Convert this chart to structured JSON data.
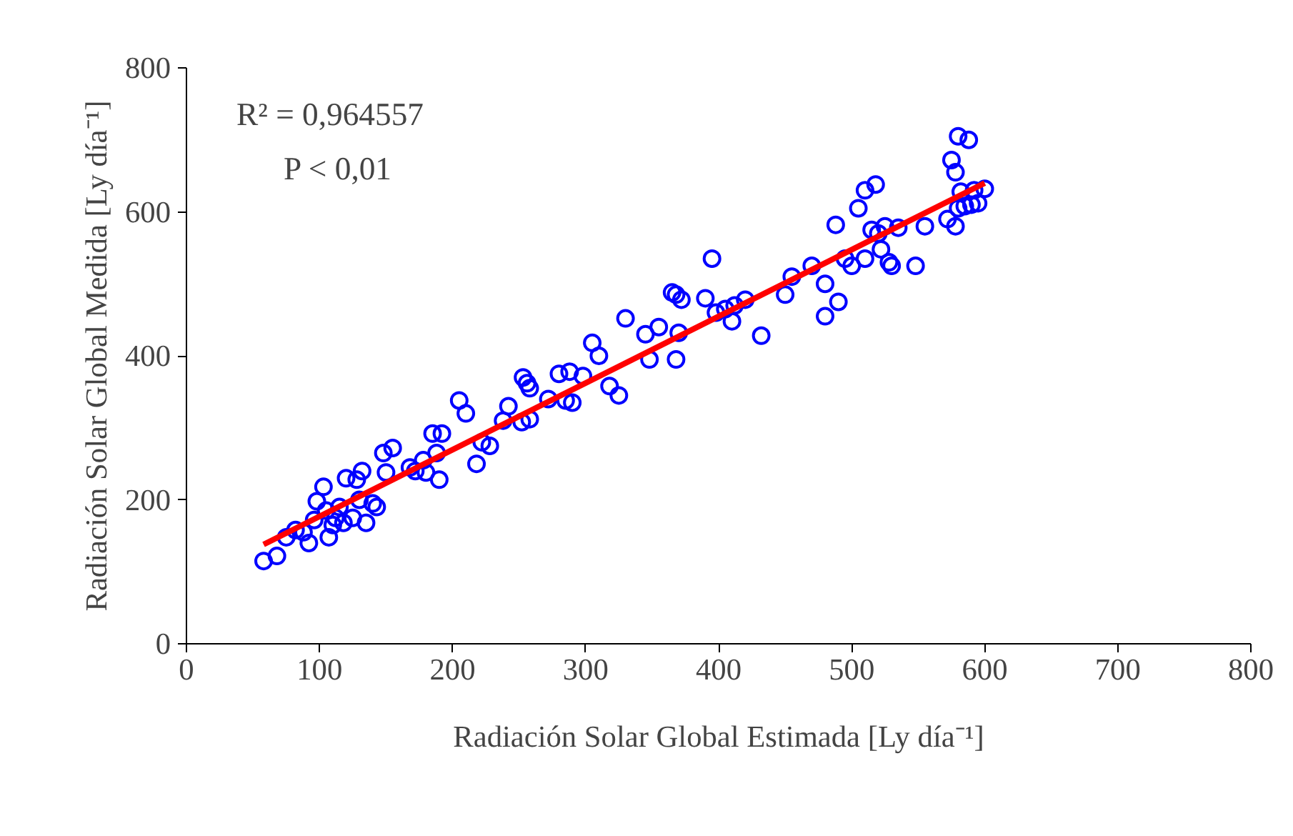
{
  "chart_data": {
    "type": "scatter",
    "xlabel": "Radiación Solar Global Estimada [Ly día⁻¹]",
    "ylabel": "Radiación Solar Global Medida [Ly día⁻¹]",
    "annotations": [
      "R² = 0,964557",
      "P < 0,01"
    ],
    "xlim": [
      0,
      800
    ],
    "xticks": [
      0,
      100,
      200,
      300,
      400,
      500,
      600,
      700,
      800
    ],
    "ylim": [
      0,
      800
    ],
    "yticks": [
      0,
      200,
      400,
      600,
      800
    ],
    "grid": false,
    "series": [
      {
        "color": "#0000ff",
        "marker": "circle",
        "x": [
          58,
          68,
          75,
          82,
          88,
          92,
          96,
          98,
          103,
          105,
          107,
          110,
          112,
          115,
          118,
          120,
          125,
          128,
          130,
          132,
          135,
          140,
          143,
          148,
          155,
          150,
          168,
          172,
          178,
          180,
          185,
          188,
          190,
          192,
          205,
          210,
          218,
          222,
          228,
          238,
          242,
          252,
          253,
          256,
          258,
          258,
          272,
          280,
          285,
          288,
          290,
          298,
          305,
          310,
          318,
          325,
          330,
          345,
          348,
          355,
          365,
          368,
          370,
          368,
          372,
          390,
          395,
          398,
          405,
          410,
          412,
          420,
          432,
          450,
          455,
          470,
          480,
          480,
          488,
          490,
          495,
          500,
          505,
          510,
          510,
          515,
          518,
          520,
          522,
          525,
          528,
          530,
          535,
          548,
          555,
          572,
          575,
          578,
          578,
          580,
          582,
          580,
          588,
          590,
          592,
          595,
          600,
          585
        ],
        "values": [
          115,
          122,
          148,
          158,
          155,
          140,
          172,
          198,
          218,
          185,
          148,
          165,
          175,
          190,
          168,
          230,
          175,
          228,
          200,
          240,
          168,
          195,
          190,
          265,
          272,
          238,
          245,
          240,
          255,
          238,
          292,
          265,
          228,
          292,
          338,
          320,
          250,
          280,
          275,
          310,
          330,
          308,
          370,
          362,
          355,
          312,
          340,
          375,
          338,
          378,
          335,
          372,
          418,
          400,
          358,
          345,
          452,
          430,
          395,
          440,
          488,
          485,
          432,
          395,
          478,
          480,
          535,
          460,
          465,
          448,
          470,
          478,
          428,
          485,
          510,
          525,
          455,
          500,
          582,
          475,
          535,
          525,
          605,
          630,
          535,
          575,
          638,
          570,
          548,
          580,
          530,
          525,
          578,
          525,
          580,
          590,
          672,
          655,
          580,
          605,
          628,
          705,
          700,
          610,
          630,
          612,
          632,
          608
        ]
      },
      {
        "type": "line",
        "color": "#ff0000",
        "marker": "none",
        "line_style": "solid",
        "x": [
          58,
          600
        ],
        "values": [
          138,
          640
        ]
      }
    ]
  }
}
